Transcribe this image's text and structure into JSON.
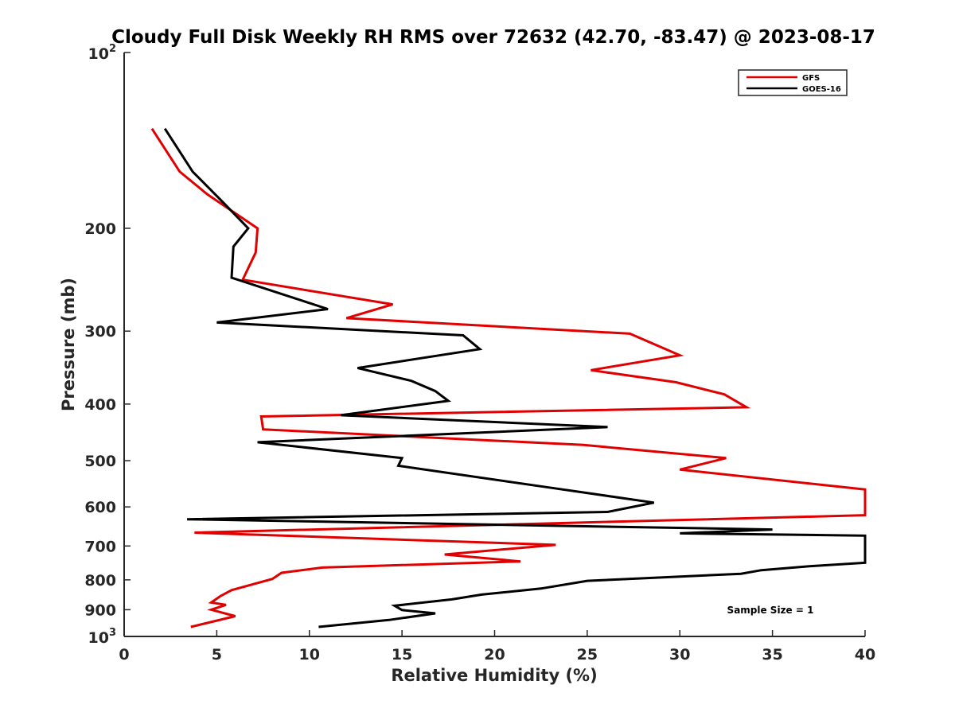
{
  "chart_data": {
    "type": "line",
    "title": "Cloudy Full Disk Weekly RH RMS over 72632 (42.70, -83.47) @ 2023-08-17",
    "xlabel": "Relative Humidity (%)",
    "ylabel": "Pressure (mb)",
    "xlim": [
      0,
      40
    ],
    "ylim": [
      100,
      1000
    ],
    "y_scale": "log",
    "y_reversed": true,
    "x_ticks": [
      {
        "value": 0,
        "label": "0"
      },
      {
        "value": 5,
        "label": "5"
      },
      {
        "value": 10,
        "label": "10"
      },
      {
        "value": 15,
        "label": "15"
      },
      {
        "value": 20,
        "label": "20"
      },
      {
        "value": 25,
        "label": "25"
      },
      {
        "value": 30,
        "label": "30"
      },
      {
        "value": 35,
        "label": "35"
      },
      {
        "value": 40,
        "label": "40"
      }
    ],
    "y_ticks": [
      {
        "value": 100,
        "base": "10",
        "exp": "2"
      },
      {
        "value": 200,
        "label": "200"
      },
      {
        "value": 300,
        "label": "300"
      },
      {
        "value": 400,
        "label": "400"
      },
      {
        "value": 500,
        "label": "500"
      },
      {
        "value": 600,
        "label": "600"
      },
      {
        "value": 700,
        "label": "700"
      },
      {
        "value": 800,
        "label": "800"
      },
      {
        "value": 900,
        "label": "900"
      },
      {
        "value": 1000,
        "base": "10",
        "exp": "3"
      }
    ],
    "grid": false,
    "legend_position": "top-right",
    "annotation": "Sample Size = 1",
    "series": [
      {
        "name": "GFS",
        "color": "#e00000",
        "points": [
          [
            1.5,
            135
          ],
          [
            3.0,
            160
          ],
          [
            4.5,
            175
          ],
          [
            7.2,
            200
          ],
          [
            7.1,
            220
          ],
          [
            6.4,
            245
          ],
          [
            14.5,
            270
          ],
          [
            12.0,
            285
          ],
          [
            27.3,
            303
          ],
          [
            30.0,
            330
          ],
          [
            25.2,
            350
          ],
          [
            29.8,
            367
          ],
          [
            32.4,
            385
          ],
          [
            33.6,
            405
          ],
          [
            7.4,
            420
          ],
          [
            7.5,
            442
          ],
          [
            24.8,
            470
          ],
          [
            32.5,
            495
          ],
          [
            30.0,
            518
          ],
          [
            40.0,
            560
          ],
          [
            40.0,
            620
          ],
          [
            3.8,
            664
          ],
          [
            23.3,
            697
          ],
          [
            17.3,
            724
          ],
          [
            21.4,
            744
          ],
          [
            10.7,
            762
          ],
          [
            8.5,
            778
          ],
          [
            8.0,
            797
          ],
          [
            5.8,
            833
          ],
          [
            5.2,
            853
          ],
          [
            4.7,
            875
          ],
          [
            5.5,
            883
          ],
          [
            4.7,
            900
          ],
          [
            6.0,
            923
          ],
          [
            3.6,
            963
          ]
        ]
      },
      {
        "name": "GOES-16",
        "color": "#000000",
        "points": [
          [
            2.2,
            135
          ],
          [
            3.7,
            160
          ],
          [
            5.3,
            180
          ],
          [
            6.7,
            200
          ],
          [
            5.9,
            215
          ],
          [
            5.8,
            243
          ],
          [
            11.0,
            275
          ],
          [
            5.0,
            290
          ],
          [
            18.3,
            305
          ],
          [
            19.2,
            322
          ],
          [
            12.6,
            347
          ],
          [
            15.5,
            365
          ],
          [
            16.8,
            380
          ],
          [
            17.5,
            395
          ],
          [
            11.7,
            418
          ],
          [
            26.1,
            438
          ],
          [
            7.2,
            465
          ],
          [
            15.0,
            495
          ],
          [
            14.8,
            510
          ],
          [
            22.8,
            555
          ],
          [
            28.6,
            590
          ],
          [
            26.1,
            612
          ],
          [
            3.4,
            630
          ],
          [
            35.0,
            656
          ],
          [
            30.0,
            666
          ],
          [
            40.0,
            672
          ],
          [
            40.0,
            748
          ],
          [
            37.0,
            758
          ],
          [
            34.4,
            770
          ],
          [
            33.3,
            781
          ],
          [
            25.0,
            803
          ],
          [
            22.5,
            828
          ],
          [
            19.3,
            848
          ],
          [
            17.7,
            864
          ],
          [
            14.6,
            886
          ],
          [
            15.0,
            901
          ],
          [
            16.8,
            913
          ],
          [
            14.3,
            937
          ],
          [
            10.5,
            963
          ]
        ]
      }
    ]
  }
}
